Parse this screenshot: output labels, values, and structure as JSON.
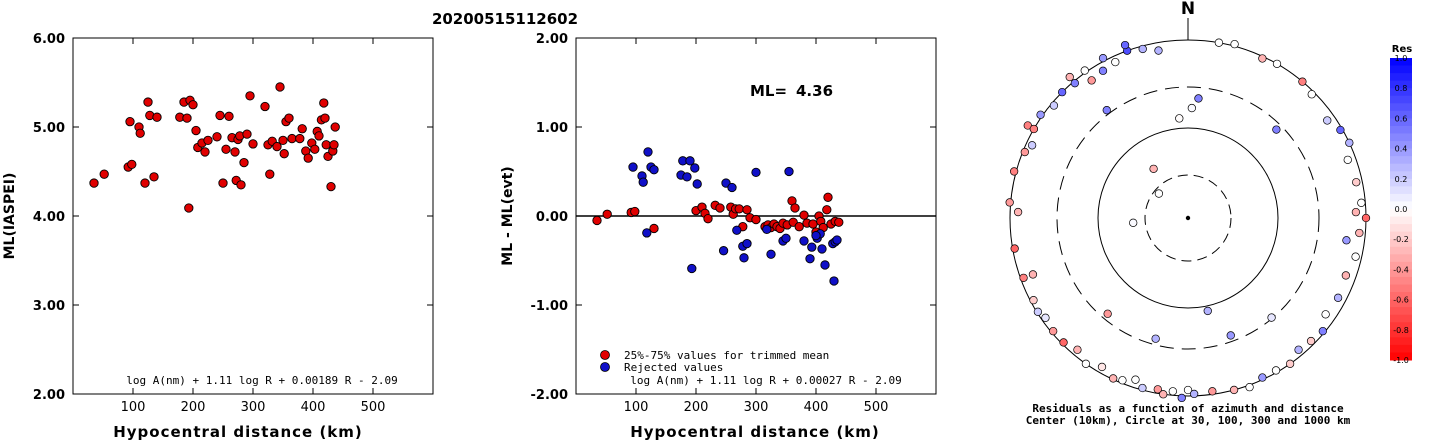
{
  "event_id": "20200515112602",
  "colors": {
    "retained": "#e00000",
    "rejected": "#1010c8"
  },
  "chart_data": [
    {
      "type": "scatter",
      "xlabel": "Hypocentral distance (km)",
      "ylabel": "ML(IASPEI)",
      "xlim": [
        0,
        600
      ],
      "ylim": [
        2.0,
        6.0
      ],
      "xticks": [
        "100",
        "200",
        "300",
        "400",
        "500"
      ],
      "yticks": [
        "2.00",
        "3.00",
        "4.00",
        "5.00",
        "6.00"
      ],
      "formula": "log A(nm) + 1.11 log R + 0.00189 R - 2.09",
      "points": [
        [
          35,
          4.37
        ],
        [
          52,
          4.47
        ],
        [
          92,
          4.55
        ],
        [
          95,
          5.06
        ],
        [
          98,
          4.58
        ],
        [
          110,
          5.0
        ],
        [
          112,
          4.93
        ],
        [
          120,
          4.37
        ],
        [
          125,
          5.28
        ],
        [
          128,
          5.13
        ],
        [
          135,
          4.44
        ],
        [
          140,
          5.11
        ],
        [
          178,
          5.11
        ],
        [
          185,
          5.28
        ],
        [
          190,
          5.1
        ],
        [
          193,
          4.09
        ],
        [
          195,
          5.3
        ],
        [
          200,
          5.25
        ],
        [
          205,
          4.96
        ],
        [
          208,
          4.77
        ],
        [
          215,
          4.82
        ],
        [
          220,
          4.72
        ],
        [
          225,
          4.85
        ],
        [
          240,
          4.89
        ],
        [
          245,
          5.13
        ],
        [
          250,
          4.37
        ],
        [
          255,
          4.75
        ],
        [
          260,
          5.12
        ],
        [
          265,
          4.88
        ],
        [
          270,
          4.72
        ],
        [
          272,
          4.4
        ],
        [
          275,
          4.86
        ],
        [
          278,
          4.9
        ],
        [
          280,
          4.35
        ],
        [
          285,
          4.6
        ],
        [
          290,
          4.92
        ],
        [
          295,
          5.35
        ],
        [
          300,
          4.81
        ],
        [
          320,
          5.23
        ],
        [
          325,
          4.8
        ],
        [
          328,
          4.47
        ],
        [
          332,
          4.84
        ],
        [
          340,
          4.78
        ],
        [
          345,
          5.45
        ],
        [
          350,
          4.85
        ],
        [
          352,
          4.7
        ],
        [
          355,
          5.06
        ],
        [
          360,
          5.1
        ],
        [
          365,
          4.87
        ],
        [
          378,
          4.87
        ],
        [
          382,
          4.98
        ],
        [
          388,
          4.73
        ],
        [
          392,
          4.65
        ],
        [
          398,
          4.82
        ],
        [
          403,
          4.75
        ],
        [
          407,
          4.95
        ],
        [
          410,
          4.9
        ],
        [
          414,
          5.08
        ],
        [
          418,
          5.27
        ],
        [
          420,
          5.1
        ],
        [
          422,
          4.8
        ],
        [
          425,
          4.67
        ],
        [
          430,
          4.33
        ],
        [
          433,
          4.73
        ],
        [
          435,
          4.8
        ],
        [
          437,
          5.0
        ]
      ]
    },
    {
      "type": "scatter",
      "xlabel": "Hypocentral distance (km)",
      "ylabel": "ML - ML(evt)",
      "xlim": [
        0,
        600
      ],
      "ylim": [
        -2.0,
        2.0
      ],
      "xticks": [
        "100",
        "200",
        "300",
        "400",
        "500"
      ],
      "yticks": [
        "-2.00",
        "-1.00",
        "0.00",
        "1.00",
        "2.00"
      ],
      "ml_label": "ML=",
      "ml_value": "4.36",
      "formula": "log A(nm) + 1.11 log R + 0.00027 R - 2.09",
      "legend": [
        {
          "label": "25%-75% values for trimmed mean",
          "kind": "retained"
        },
        {
          "label": "Rejected values",
          "kind": "rejected"
        }
      ],
      "retained": [
        [
          35,
          -0.05
        ],
        [
          52,
          0.02
        ],
        [
          92,
          0.04
        ],
        [
          98,
          0.05
        ],
        [
          130,
          -0.14
        ],
        [
          200,
          0.06
        ],
        [
          210,
          0.1
        ],
        [
          215,
          0.03
        ],
        [
          220,
          -0.03
        ],
        [
          232,
          0.12
        ],
        [
          240,
          0.09
        ],
        [
          258,
          0.1
        ],
        [
          262,
          0.02
        ],
        [
          266,
          0.08
        ],
        [
          272,
          0.08
        ],
        [
          278,
          -0.12
        ],
        [
          285,
          0.07
        ],
        [
          290,
          -0.02
        ],
        [
          300,
          -0.04
        ],
        [
          315,
          -0.12
        ],
        [
          320,
          -0.1
        ],
        [
          325,
          -0.13
        ],
        [
          330,
          -0.09
        ],
        [
          335,
          -0.12
        ],
        [
          340,
          -0.14
        ],
        [
          345,
          -0.08
        ],
        [
          352,
          -0.1
        ],
        [
          360,
          0.17
        ],
        [
          362,
          -0.07
        ],
        [
          365,
          0.09
        ],
        [
          372,
          -0.12
        ],
        [
          380,
          0.01
        ],
        [
          385,
          -0.08
        ],
        [
          395,
          -0.09
        ],
        [
          400,
          -0.18
        ],
        [
          405,
          0.0
        ],
        [
          408,
          -0.06
        ],
        [
          412,
          -0.13
        ],
        [
          418,
          0.07
        ],
        [
          420,
          0.21
        ],
        [
          425,
          -0.09
        ],
        [
          432,
          -0.06
        ],
        [
          438,
          -0.07
        ]
      ],
      "rejected": [
        [
          95,
          0.55
        ],
        [
          110,
          0.45
        ],
        [
          112,
          0.38
        ],
        [
          118,
          -0.19
        ],
        [
          120,
          0.72
        ],
        [
          125,
          0.55
        ],
        [
          130,
          0.52
        ],
        [
          175,
          0.46
        ],
        [
          178,
          0.62
        ],
        [
          185,
          0.44
        ],
        [
          190,
          0.62
        ],
        [
          193,
          -0.59
        ],
        [
          198,
          0.54
        ],
        [
          202,
          0.36
        ],
        [
          246,
          -0.39
        ],
        [
          250,
          0.37
        ],
        [
          260,
          0.32
        ],
        [
          268,
          -0.16
        ],
        [
          278,
          -0.34
        ],
        [
          280,
          -0.47
        ],
        [
          285,
          -0.31
        ],
        [
          300,
          0.49
        ],
        [
          318,
          -0.15
        ],
        [
          325,
          -0.43
        ],
        [
          345,
          -0.28
        ],
        [
          350,
          -0.25
        ],
        [
          355,
          0.5
        ],
        [
          380,
          -0.28
        ],
        [
          390,
          -0.48
        ],
        [
          393,
          -0.35
        ],
        [
          402,
          -0.25
        ],
        [
          407,
          -0.2
        ],
        [
          410,
          -0.37
        ],
        [
          415,
          -0.55
        ],
        [
          428,
          -0.31
        ],
        [
          432,
          -0.29
        ],
        [
          435,
          -0.27
        ],
        [
          430,
          -0.73
        ],
        [
          400,
          -0.22
        ]
      ]
    },
    {
      "type": "polar-scatter",
      "north_label": "N",
      "caption_line1": "Residuals as a function of azimuth and distance",
      "caption_line2": "Center (10km), Circle at 30, 100, 300 and 1000 km",
      "colorbar_title": "Res",
      "colorbar_ticks": [
        "1.0",
        "0.8",
        "0.6",
        "0.4",
        "0.2",
        "0.0",
        "-0.2",
        "-0.4",
        "-0.6",
        "-0.8",
        "-1.0"
      ],
      "rings_km": [
        30,
        100,
        300,
        1000
      ],
      "points": [
        [
          2,
          110,
          0.02
        ],
        [
          5,
          120,
          0.5
        ],
        [
          45,
          125,
          0.5
        ],
        [
          -37,
          135,
          0.5
        ],
        [
          -50,
          38,
          0.0
        ],
        [
          -95,
          55,
          0.02
        ],
        [
          -5,
          100,
          -0.01
        ],
        [
          168,
          95,
          0.3
        ],
        [
          -20,
          178,
          0.7
        ],
        [
          -35,
          180,
          0.0
        ],
        [
          -40,
          176,
          0.5
        ],
        [
          -45,
          178,
          0.6
        ],
        [
          -50,
          175,
          0.2
        ],
        [
          -55,
          180,
          0.4
        ],
        [
          -60,
          178,
          0.0
        ],
        [
          -30,
          170,
          0.5
        ],
        [
          -15,
          175,
          0.3
        ],
        [
          -10,
          170,
          0.3
        ],
        [
          -25,
          172,
          0.0
        ],
        [
          -35,
          168,
          -0.4
        ],
        [
          -20,
          184,
          0.6
        ],
        [
          -28,
          181,
          0.4
        ],
        [
          -40,
          184,
          -0.3
        ],
        [
          -60,
          185,
          -0.5
        ],
        [
          -75,
          180,
          -0.5
        ],
        [
          -85,
          179,
          -0.4
        ],
        [
          -100,
          176,
          -0.6
        ],
        [
          -110,
          175,
          -0.5
        ],
        [
          -118,
          175,
          -0.2
        ],
        [
          -122,
          177,
          0.2
        ],
        [
          -125,
          174,
          0.1
        ],
        [
          -130,
          176,
          -0.4
        ],
        [
          -135,
          176,
          -0.6
        ],
        [
          -140,
          172,
          -0.3
        ],
        [
          -145,
          178,
          0.0
        ],
        [
          -150,
          172,
          -0.1
        ],
        [
          -155,
          177,
          -0.3
        ],
        [
          -158,
          175,
          0.0
        ],
        [
          -162,
          170,
          0.0
        ],
        [
          -165,
          176,
          0.2
        ],
        [
          -170,
          174,
          -0.4
        ],
        [
          -172,
          178,
          -0.3
        ],
        [
          -175,
          174,
          0.0
        ],
        [
          -178,
          180,
          0.5
        ],
        [
          -180,
          172,
          0.0
        ],
        [
          178,
          176,
          0.3
        ],
        [
          172,
          175,
          -0.4
        ],
        [
          165,
          178,
          -0.3
        ],
        [
          160,
          180,
          0.0
        ],
        [
          155,
          176,
          0.4
        ],
        [
          150,
          176,
          0.0
        ],
        [
          145,
          178,
          -0.2
        ],
        [
          140,
          172,
          0.3
        ],
        [
          135,
          174,
          -0.2
        ],
        [
          130,
          176,
          0.5
        ],
        [
          125,
          168,
          0.0
        ],
        [
          118,
          170,
          0.3
        ],
        [
          110,
          168,
          -0.3
        ],
        [
          103,
          172,
          0.0
        ],
        [
          98,
          160,
          0.4
        ],
        [
          95,
          172,
          -0.3
        ],
        [
          90,
          178,
          -0.6
        ],
        [
          88,
          168,
          -0.3
        ],
        [
          85,
          174,
          0.0
        ],
        [
          78,
          172,
          -0.2
        ],
        [
          70,
          170,
          0.0
        ],
        [
          65,
          178,
          0.3
        ],
        [
          60,
          176,
          0.6
        ],
        [
          55,
          170,
          0.2
        ],
        [
          45,
          175,
          0.0
        ],
        [
          40,
          178,
          -0.5
        ],
        [
          30,
          178,
          0.0
        ],
        [
          25,
          176,
          -0.3
        ],
        [
          15,
          180,
          0.0
        ],
        [
          10,
          178,
          0.0
        ],
        [
          -35,
          60,
          -0.3
        ],
        [
          -140,
          125,
          -0.4
        ],
        [
          -165,
          125,
          0.3
        ],
        [
          160,
          125,
          0.4
        ],
        [
          140,
          130,
          0.1
        ],
        [
          -110,
          165,
          -0.3
        ],
        [
          -60,
          178,
          -0.5
        ],
        [
          -68,
          176,
          -0.4
        ],
        [
          -88,
          170,
          -0.3
        ],
        [
          -65,
          172,
          0.2
        ]
      ]
    }
  ]
}
